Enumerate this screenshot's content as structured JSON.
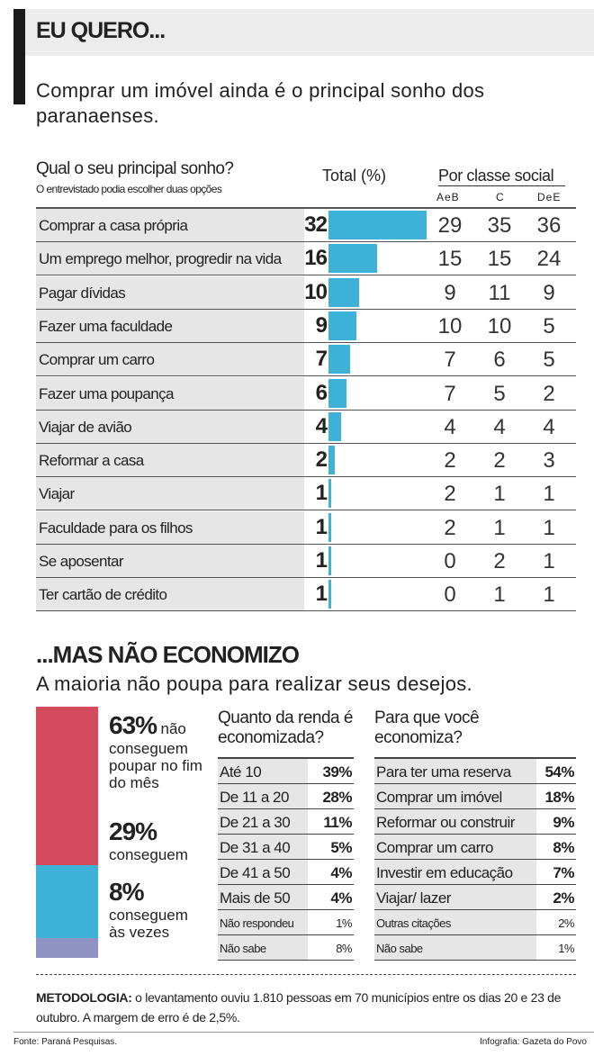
{
  "header": {
    "title": "EU QUERO...",
    "subtitle": "Comprar um imóvel ainda é o principal sonho dos paranaenses."
  },
  "colors": {
    "bar": "#3eb1d8",
    "red": "#d64a5e",
    "blue": "#3eb1d8",
    "purple": "#8e93c4",
    "label_bg": "#e6e6e6"
  },
  "chart_data": [
    {
      "type": "bar",
      "title": "Qual o seu principal sonho?",
      "subtitle": "O entrevistado podia escolher duas opções",
      "total_label": "Total (%)",
      "group_label": "Por classe social",
      "columns": [
        "AeB",
        "C",
        "DeE"
      ],
      "categories": [
        "Comprar a casa própria",
        "Um emprego melhor, progredir na vida",
        "Pagar dívidas",
        "Fazer uma faculdade",
        "Comprar um carro",
        "Fazer uma poupança",
        "Viajar de avião",
        "Reformar a casa",
        "Viajar",
        "Faculdade para os filhos",
        "Se aposentar",
        "Ter cartão de crédito"
      ],
      "values": [
        32,
        16,
        10,
        9,
        7,
        6,
        4,
        2,
        1,
        1,
        1,
        1
      ],
      "by_class": [
        [
          29,
          35,
          36
        ],
        [
          15,
          15,
          24
        ],
        [
          9,
          11,
          9
        ],
        [
          10,
          10,
          5
        ],
        [
          7,
          6,
          5
        ],
        [
          7,
          5,
          2
        ],
        [
          4,
          4,
          4
        ],
        [
          2,
          2,
          3
        ],
        [
          2,
          1,
          1
        ],
        [
          2,
          1,
          1
        ],
        [
          0,
          2,
          1
        ],
        [
          0,
          1,
          1
        ]
      ]
    },
    {
      "type": "bar",
      "stacked": true,
      "values": [
        63,
        29,
        8
      ],
      "labels": [
        {
          "pct": "63%",
          "text1": "não",
          "text2": "conseguem poupar no fim do mês"
        },
        {
          "pct": "29%",
          "text1": "",
          "text2": "conseguem"
        },
        {
          "pct": "8%",
          "text1": "",
          "text2": "conseguem às vezes"
        }
      ]
    },
    {
      "type": "table",
      "title": "Quanto da renda é economizada?",
      "rows": [
        [
          "Até 10",
          "39%"
        ],
        [
          "De 11 a 20",
          "28%"
        ],
        [
          "De 21 a 30",
          "11%"
        ],
        [
          "De 31 a 40",
          "5%"
        ],
        [
          "De 41 a 50",
          "4%"
        ],
        [
          "Mais de 50",
          "4%"
        ],
        [
          "Não respondeu",
          "1%"
        ],
        [
          "Não sabe",
          "8%"
        ]
      ]
    },
    {
      "type": "table",
      "title": "Para que você economiza?",
      "rows": [
        [
          "Para ter uma reserva",
          "54%"
        ],
        [
          "Comprar um imóvel",
          "18%"
        ],
        [
          "Reformar ou construir",
          "9%"
        ],
        [
          "Comprar um carro",
          "8%"
        ],
        [
          "Investir em educação",
          "7%"
        ],
        [
          "Viajar/ lazer",
          "2%"
        ],
        [
          "Outras citações",
          "2%"
        ],
        [
          "Não sabe",
          "1%"
        ]
      ]
    }
  ],
  "section2": {
    "title": "...MAS NÃO ECONOMIZO",
    "subtitle": "A maioria não poupa para realizar seus desejos."
  },
  "footer": {
    "metodologia_label": "METODOLOGIA:",
    "metodologia": " o levantamento ouviu 1.810 pessoas em 70 municípios entre os dias 20 e 23 de outubro. A margem de erro é de 2,5%.",
    "fonte": "Fonte: Paraná Pesquisas.",
    "infografia": "Infografia: Gazeta do Povo"
  }
}
